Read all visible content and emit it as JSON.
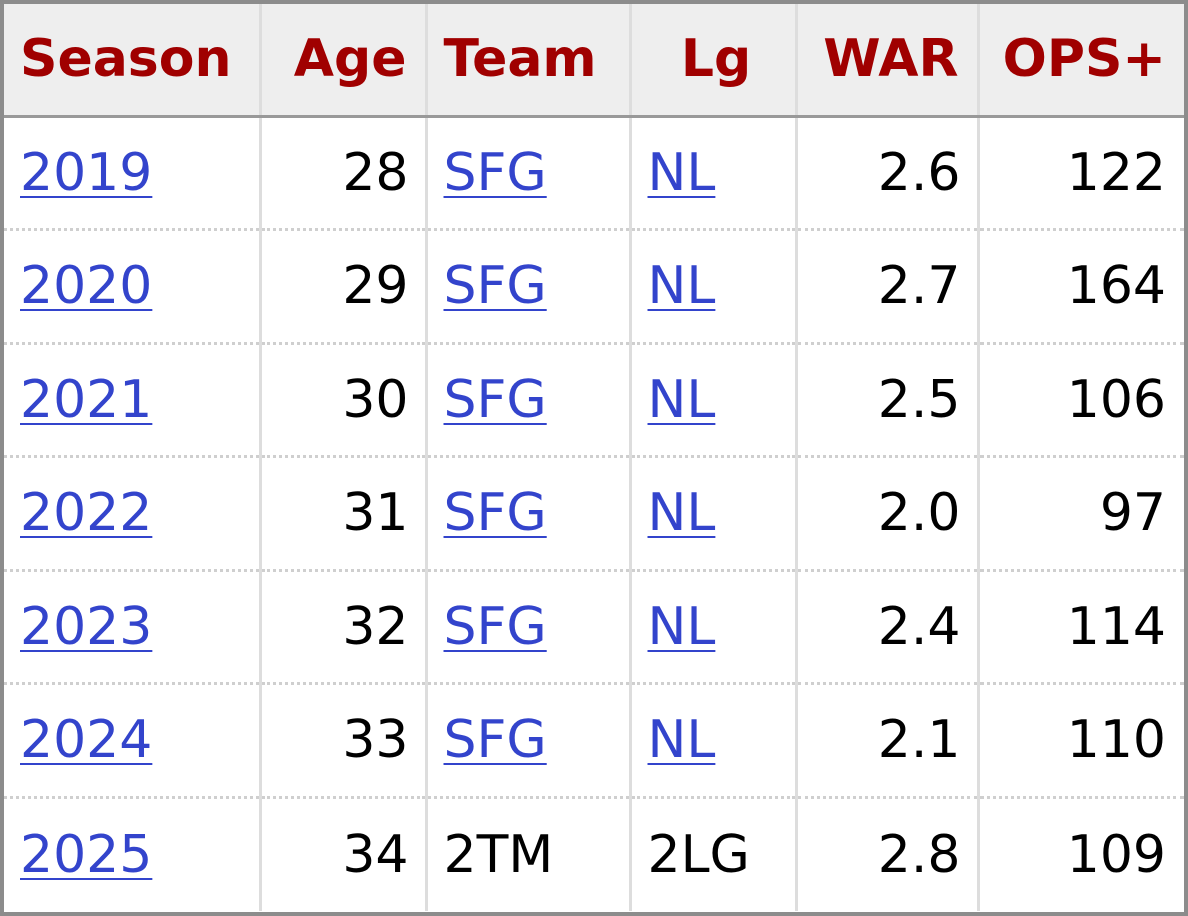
{
  "table": {
    "headers": {
      "season": "Season",
      "age": "Age",
      "team": "Team",
      "lg": "Lg",
      "war": "WAR",
      "ops_plus": "OPS+"
    },
    "rows": [
      {
        "season": "2019",
        "age": "28",
        "team": "SFG",
        "lg": "NL",
        "war": "2.6",
        "ops_plus": "122"
      },
      {
        "season": "2020",
        "age": "29",
        "team": "SFG",
        "lg": "NL",
        "war": "2.7",
        "ops_plus": "164"
      },
      {
        "season": "2021",
        "age": "30",
        "team": "SFG",
        "lg": "NL",
        "war": "2.5",
        "ops_plus": "106"
      },
      {
        "season": "2022",
        "age": "31",
        "team": "SFG",
        "lg": "NL",
        "war": "2.0",
        "ops_plus": "97"
      },
      {
        "season": "2023",
        "age": "32",
        "team": "SFG",
        "lg": "NL",
        "war": "2.4",
        "ops_plus": "114"
      },
      {
        "season": "2024",
        "age": "33",
        "team": "SFG",
        "lg": "NL",
        "war": "2.1",
        "ops_plus": "110"
      },
      {
        "season": "2025",
        "age": "34",
        "team": "2TM",
        "lg": "2LG",
        "war": "2.8",
        "ops_plus": "109"
      }
    ]
  },
  "colors": {
    "header_text": "#a00000",
    "header_bg": "#eeeeee",
    "link": "#3344cc",
    "text": "#000000",
    "frame": "#8c8c8c"
  }
}
